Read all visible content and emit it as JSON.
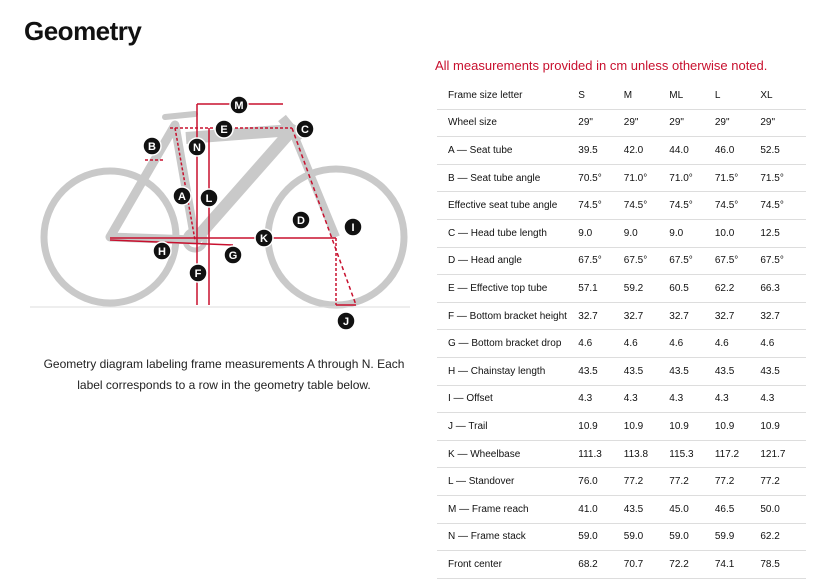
{
  "header": {
    "title": "Geometry"
  },
  "diagram": {
    "labels": [
      "M",
      "E",
      "C",
      "B",
      "N",
      "A",
      "L",
      "D",
      "I",
      "K",
      "H",
      "G",
      "F",
      "J"
    ],
    "caption": "Geometry diagram labeling frame measurements A through N. Each label corresponds to a row in the geometry table below."
  },
  "note": "All measurements provided in cm unless otherwise noted.",
  "table": {
    "header": [
      "Frame size letter",
      "S",
      "M",
      "ML",
      "L",
      "XL"
    ],
    "rows": [
      [
        "Wheel size",
        "29\"",
        "29\"",
        "29\"",
        "29\"",
        "29\""
      ],
      [
        "A — Seat tube",
        "39.5",
        "42.0",
        "44.0",
        "46.0",
        "52.5"
      ],
      [
        "B — Seat tube angle",
        "70.5°",
        "71.0°",
        "71.0°",
        "71.5°",
        "71.5°"
      ],
      [
        "Effective seat tube angle",
        "74.5°",
        "74.5°",
        "74.5°",
        "74.5°",
        "74.5°"
      ],
      [
        "C — Head tube length",
        "9.0",
        "9.0",
        "9.0",
        "10.0",
        "12.5"
      ],
      [
        "D — Head angle",
        "67.5°",
        "67.5°",
        "67.5°",
        "67.5°",
        "67.5°"
      ],
      [
        "E — Effective top tube",
        "57.1",
        "59.2",
        "60.5",
        "62.2",
        "66.3"
      ],
      [
        "F — Bottom bracket height",
        "32.7",
        "32.7",
        "32.7",
        "32.7",
        "32.7"
      ],
      [
        "G — Bottom bracket drop",
        "4.6",
        "4.6",
        "4.6",
        "4.6",
        "4.6"
      ],
      [
        "H — Chainstay length",
        "43.5",
        "43.5",
        "43.5",
        "43.5",
        "43.5"
      ],
      [
        "I — Offset",
        "4.3",
        "4.3",
        "4.3",
        "4.3",
        "4.3"
      ],
      [
        "J — Trail",
        "10.9",
        "10.9",
        "10.9",
        "10.9",
        "10.9"
      ],
      [
        "K — Wheelbase",
        "111.3",
        "113.8",
        "115.3",
        "117.2",
        "121.7"
      ],
      [
        "L — Standover",
        "76.0",
        "77.2",
        "77.2",
        "77.2",
        "77.2"
      ],
      [
        "M — Frame reach",
        "41.0",
        "43.5",
        "45.0",
        "46.5",
        "50.0"
      ],
      [
        "N — Frame stack",
        "59.0",
        "59.0",
        "59.0",
        "59.9",
        "62.2"
      ],
      [
        "Front center",
        "68.2",
        "70.7",
        "72.2",
        "74.1",
        "78.5"
      ]
    ]
  }
}
